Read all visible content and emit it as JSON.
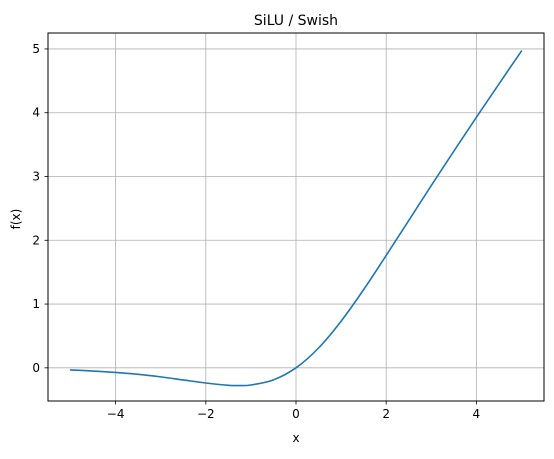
{
  "chart_data": {
    "type": "line",
    "title": "SiLU / Swish",
    "xlabel": "x",
    "ylabel": "f(x)",
    "xlim": [
      -5.5,
      5.5
    ],
    "ylim": [
      -0.52,
      5.25
    ],
    "grid": true,
    "x_ticks": [
      -4,
      -2,
      0,
      2,
      4
    ],
    "x_tick_labels": [
      "−4",
      "−2",
      "0",
      "2",
      "4"
    ],
    "y_ticks": [
      0,
      1,
      2,
      3,
      4,
      5
    ],
    "y_tick_labels": [
      "0",
      "1",
      "2",
      "3",
      "4",
      "5"
    ],
    "series": [
      {
        "color": "#1f77b4",
        "x": [
          -5,
          -4.5,
          -4,
          -3.5,
          -3,
          -2.5,
          -2,
          -1.5,
          -1.28,
          -1,
          -0.5,
          0,
          0.5,
          1,
          1.5,
          2,
          2.5,
          3,
          3.5,
          4,
          4.5,
          5
        ],
        "values": [
          -0.033,
          -0.05,
          -0.072,
          -0.102,
          -0.142,
          -0.19,
          -0.238,
          -0.274,
          -0.278,
          -0.269,
          -0.189,
          0.0,
          0.311,
          0.731,
          1.226,
          1.762,
          2.31,
          2.857,
          3.396,
          3.928,
          4.45,
          4.967
        ]
      }
    ]
  }
}
